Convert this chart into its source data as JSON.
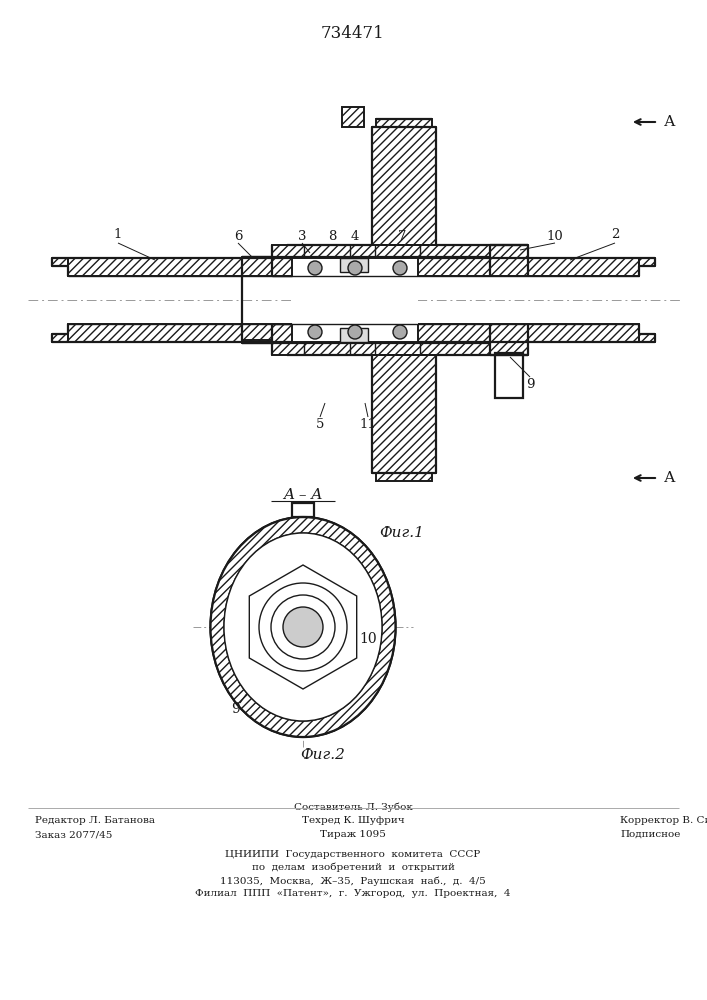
{
  "patent_number": "734471",
  "fig1_label": "Фиг.1",
  "fig2_label": "Фиг.2",
  "section_label": "A – A",
  "bg_color": "#ffffff",
  "line_color": "#1a1a1a",
  "footer_line1_left": "Редактор Л. Батанова",
  "footer_line2_left": "Заказ 2077/45",
  "footer_line1_center_top": "Составитель Л. Зубок",
  "footer_line2_center": "Техред К. Шуфрич",
  "footer_line3_center": "Тираж 1095",
  "footer_line1_right": "Корректор В. Синицкая",
  "footer_line2_right": "Подписное",
  "footer_org1": "ЦНИИПИ  Государственного  комитета  СССР",
  "footer_org2": "по  делам  изобретений  и  открытий",
  "footer_org3": "113035,  Москва,  Ж–35,  Раушская  наб.,  д.  4/5",
  "footer_org4": "Филиал  ППП  «Патент»,  г.  Ужгород,  ул.  Проектная,  4"
}
